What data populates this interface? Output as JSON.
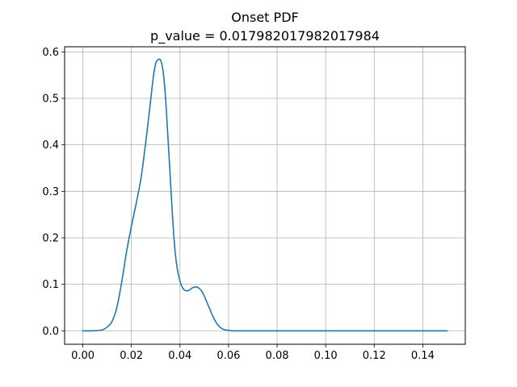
{
  "chart_data": {
    "type": "line",
    "title": "Onset PDF",
    "subtitle": "p_value = 0.017982017982017984",
    "xlabel": "",
    "ylabel": "",
    "xlim": [
      -0.0075,
      0.1575
    ],
    "ylim": [
      -0.029,
      0.611
    ],
    "xticks": [
      0.0,
      0.02,
      0.04,
      0.06,
      0.08,
      0.1,
      0.12,
      0.14
    ],
    "xtick_labels": [
      "0.00",
      "0.02",
      "0.04",
      "0.06",
      "0.08",
      "0.10",
      "0.12",
      "0.14"
    ],
    "yticks": [
      0.0,
      0.1,
      0.2,
      0.3,
      0.4,
      0.5,
      0.6
    ],
    "ytick_labels": [
      "0.0",
      "0.1",
      "0.2",
      "0.3",
      "0.4",
      "0.5",
      "0.6"
    ],
    "grid": true,
    "series": [
      {
        "color": "#1f77b4",
        "x": [
          0.0,
          0.004,
          0.008,
          0.01,
          0.012,
          0.014,
          0.016,
          0.018,
          0.02,
          0.022,
          0.024,
          0.026,
          0.028,
          0.029,
          0.03,
          0.031,
          0.032,
          0.033,
          0.034,
          0.035,
          0.036,
          0.037,
          0.038,
          0.039,
          0.04,
          0.041,
          0.042,
          0.043,
          0.044,
          0.045,
          0.046,
          0.047,
          0.048,
          0.049,
          0.05,
          0.052,
          0.054,
          0.056,
          0.058,
          0.06,
          0.062,
          0.065,
          0.07,
          0.08,
          0.1,
          0.12,
          0.15
        ],
        "y": [
          0.0,
          0.0,
          0.002,
          0.008,
          0.02,
          0.05,
          0.105,
          0.17,
          0.225,
          0.275,
          0.33,
          0.41,
          0.5,
          0.545,
          0.575,
          0.583,
          0.582,
          0.56,
          0.505,
          0.42,
          0.33,
          0.24,
          0.17,
          0.13,
          0.107,
          0.093,
          0.087,
          0.086,
          0.088,
          0.092,
          0.094,
          0.094,
          0.091,
          0.085,
          0.075,
          0.05,
          0.026,
          0.01,
          0.003,
          0.001,
          0.0,
          0.0,
          0.0,
          0.0,
          0.0,
          0.0,
          0.0
        ]
      }
    ]
  }
}
